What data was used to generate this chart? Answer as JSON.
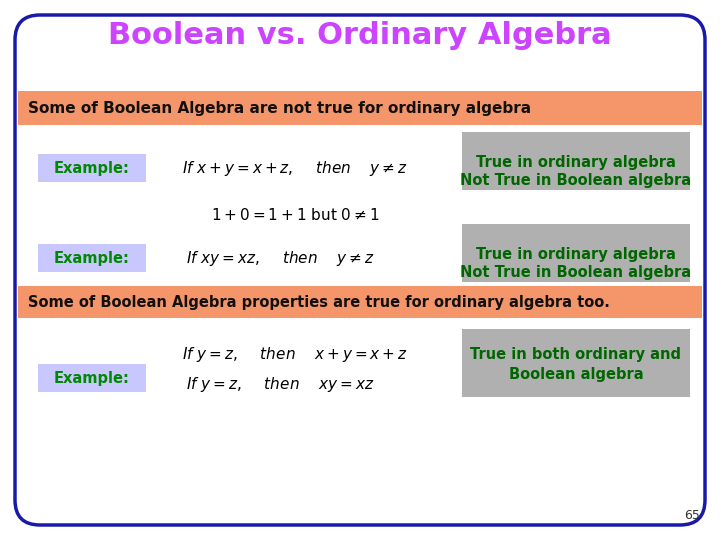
{
  "title": "Boolean vs. Ordinary Algebra",
  "title_color": "#cc44ff",
  "title_fontsize": 22,
  "bg_color": "#ffffff",
  "border_color": "#1a1aaa",
  "orange_bar1_text": "Some of Boolean Algebra are not true for ordinary algebra",
  "orange_bar2_text": "Some of Boolean Algebra properties are true for ordinary algebra too.",
  "orange_color": "#f4956a",
  "example_bg": "#c8c8ff",
  "example_label": "Example:",
  "example_label_color": "#008800",
  "gray_box_color": "#b0b0b0",
  "gray_text_color": "#006600",
  "math_color": "#000000",
  "page_number": "65",
  "bar_text_color": "#111111"
}
